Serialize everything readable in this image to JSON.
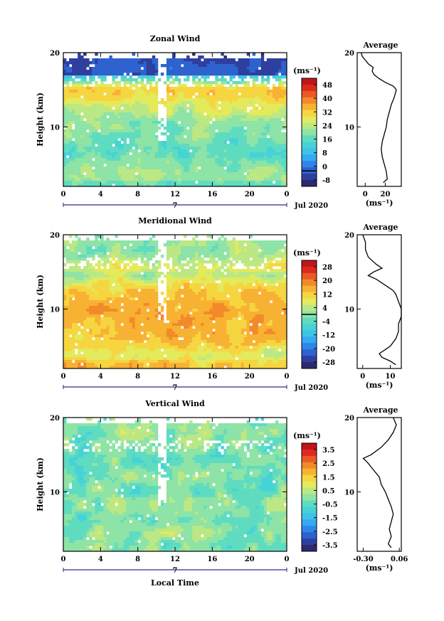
{
  "colors": {
    "ramp": [
      "#2b2a6e",
      "#2f3f9f",
      "#2e62cf",
      "#2f86ea",
      "#36a9f0",
      "#3dc3ea",
      "#47d3d6",
      "#5fdcc0",
      "#8ee3a6",
      "#bbe884",
      "#e3ea5c",
      "#f6d640",
      "#f8b233",
      "#f38a2a",
      "#ea5a23",
      "#dc2b1e",
      "#c0161a"
    ],
    "zero_line": "#000000"
  },
  "panels": [
    {
      "id": "zonal",
      "title": "Zonal Wind",
      "ylabel": "Height (km)",
      "yticks": [
        "20",
        "10"
      ],
      "xticks": [
        "0",
        "4",
        "8",
        "12",
        "16",
        "20",
        "0"
      ],
      "day_label": "7",
      "date_label": "Jul 2020",
      "unit_label": "(ms⁻¹)",
      "colorbar_labels": [
        "48",
        "40",
        "32",
        "24",
        "16",
        "8",
        "0",
        "-8"
      ],
      "avg_title": "Average",
      "avg_yticks": [
        "20",
        "10"
      ],
      "avg_xticks": [
        "0",
        "20"
      ],
      "avg_unit": "(ms⁻¹)"
    },
    {
      "id": "meridional",
      "title": "Meridional Wind",
      "ylabel": "Height (km)",
      "yticks": [
        "20",
        "10"
      ],
      "xticks": [
        "0",
        "4",
        "8",
        "12",
        "16",
        "20",
        "0"
      ],
      "day_label": "7",
      "date_label": "Jul 2020",
      "unit_label": "(ms⁻¹)",
      "colorbar_labels": [
        "28",
        "20",
        "12",
        "4",
        "-4",
        "-12",
        "-20",
        "-28"
      ],
      "avg_title": "Average",
      "avg_yticks": [
        "20",
        "10"
      ],
      "avg_xticks": [
        "0",
        "10"
      ],
      "avg_unit": "(ms⁻¹)"
    },
    {
      "id": "vertical",
      "title": "Vertical Wind",
      "ylabel": "Height (km)",
      "yticks": [
        "20",
        "10"
      ],
      "xticks": [
        "0",
        "4",
        "8",
        "12",
        "16",
        "20",
        "0"
      ],
      "day_label": "7",
      "date_label": "Jul 2020",
      "unit_label": "(ms⁻¹)",
      "colorbar_labels": [
        "3.5",
        "2.5",
        "1.5",
        "0.5",
        "-0.5",
        "-1.5",
        "-2.5",
        "-3.5"
      ],
      "avg_title": "Average",
      "avg_yticks": [
        "20",
        "10"
      ],
      "avg_xticks": [
        "-0.30",
        "0.06"
      ],
      "avg_unit": "(ms⁻¹)"
    }
  ],
  "xlabel": "Local Time",
  "chart_data": [
    {
      "type": "heatmap",
      "title": "Zonal Wind",
      "ylabel": "Height (km)",
      "xlim": [
        0,
        24
      ],
      "ylim": [
        2,
        20
      ],
      "x_ticks": [
        0,
        4,
        8,
        12,
        16,
        20,
        24
      ],
      "colorbar": {
        "levels": [
          -8,
          0,
          8,
          16,
          24,
          32,
          40,
          48
        ],
        "unit": "ms⁻¹",
        "zero_contour": 0
      },
      "profile": [
        {
          "z": 2.5,
          "v": 18
        },
        {
          "z": 3,
          "v": 22
        },
        {
          "z": 4,
          "v": 21
        },
        {
          "z": 5,
          "v": 19
        },
        {
          "z": 6,
          "v": 17
        },
        {
          "z": 7,
          "v": 16
        },
        {
          "z": 8,
          "v": 17
        },
        {
          "z": 9,
          "v": 19
        },
        {
          "z": 10,
          "v": 21
        },
        {
          "z": 11,
          "v": 22
        },
        {
          "z": 12,
          "v": 24
        },
        {
          "z": 13,
          "v": 26
        },
        {
          "z": 14,
          "v": 29
        },
        {
          "z": 15,
          "v": 31
        },
        {
          "z": 15.5,
          "v": 28
        },
        {
          "z": 16,
          "v": 20
        },
        {
          "z": 16.5,
          "v": 14
        },
        {
          "z": 17,
          "v": 9
        },
        {
          "z": 17.5,
          "v": 7
        },
        {
          "z": 18,
          "v": 8
        },
        {
          "z": 18.5,
          "v": 3
        },
        {
          "z": 19,
          "v": 0
        },
        {
          "z": 19.5,
          "v": -3
        },
        {
          "z": 20,
          "v": -4
        }
      ]
    },
    {
      "type": "heatmap",
      "title": "Meridional Wind",
      "ylabel": "Height (km)",
      "xlim": [
        0,
        24
      ],
      "ylim": [
        2,
        20
      ],
      "x_ticks": [
        0,
        4,
        8,
        12,
        16,
        20,
        24
      ],
      "colorbar": {
        "levels": [
          -28,
          -20,
          -12,
          -4,
          4,
          12,
          20,
          28
        ],
        "unit": "ms⁻¹",
        "zero_contour": 0
      },
      "profile": [
        {
          "z": 2.5,
          "v": 12
        },
        {
          "z": 3,
          "v": 10
        },
        {
          "z": 3.5,
          "v": 7
        },
        {
          "z": 4,
          "v": 6
        },
        {
          "z": 4.5,
          "v": 8
        },
        {
          "z": 5,
          "v": 10
        },
        {
          "z": 6,
          "v": 12
        },
        {
          "z": 7,
          "v": 13
        },
        {
          "z": 8,
          "v": 13
        },
        {
          "z": 9,
          "v": 14
        },
        {
          "z": 10,
          "v": 14
        },
        {
          "z": 11,
          "v": 13
        },
        {
          "z": 12,
          "v": 12
        },
        {
          "z": 12.5,
          "v": 11
        },
        {
          "z": 13,
          "v": 9
        },
        {
          "z": 14,
          "v": 5
        },
        {
          "z": 14.5,
          "v": 2
        },
        {
          "z": 15,
          "v": 4
        },
        {
          "z": 15.5,
          "v": 7
        },
        {
          "z": 16,
          "v": 5
        },
        {
          "z": 17,
          "v": 2
        },
        {
          "z": 18,
          "v": 1
        },
        {
          "z": 19,
          "v": 1
        },
        {
          "z": 20,
          "v": 0
        }
      ]
    },
    {
      "type": "heatmap",
      "title": "Vertical Wind",
      "ylabel": "Height (km)",
      "xlim": [
        0,
        24
      ],
      "ylim": [
        2,
        20
      ],
      "x_ticks": [
        0,
        4,
        8,
        12,
        16,
        20,
        24
      ],
      "colorbar": {
        "levels": [
          -3.5,
          -2.5,
          -1.5,
          -0.5,
          0.5,
          1.5,
          2.5,
          3.5
        ],
        "unit": "ms⁻¹"
      },
      "profile": [
        {
          "z": 2.5,
          "v": -0.02
        },
        {
          "z": 3,
          "v": -0.05
        },
        {
          "z": 4,
          "v": -0.02
        },
        {
          "z": 5,
          "v": -0.04
        },
        {
          "z": 6,
          "v": -0.02
        },
        {
          "z": 7,
          "v": 0.0
        },
        {
          "z": 8,
          "v": -0.02
        },
        {
          "z": 9,
          "v": -0.05
        },
        {
          "z": 10,
          "v": -0.08
        },
        {
          "z": 11,
          "v": -0.12
        },
        {
          "z": 12,
          "v": -0.14
        },
        {
          "z": 13,
          "v": -0.2
        },
        {
          "z": 14,
          "v": -0.26
        },
        {
          "z": 14.5,
          "v": -0.3
        },
        {
          "z": 15,
          "v": -0.22
        },
        {
          "z": 16,
          "v": -0.12
        },
        {
          "z": 17,
          "v": -0.05
        },
        {
          "z": 18,
          "v": 0.0
        },
        {
          "z": 19,
          "v": 0.03
        },
        {
          "z": 20,
          "v": 0.0
        }
      ]
    }
  ]
}
